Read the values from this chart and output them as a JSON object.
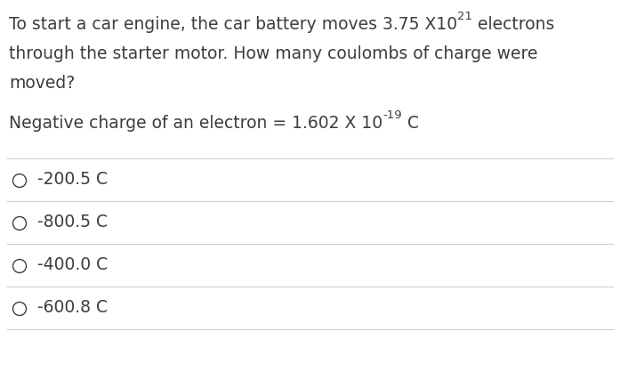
{
  "background_color": "#ffffff",
  "text_color": "#3d3d3d",
  "line_color": "#cccccc",
  "font_size": 13.5,
  "sup_font_size": 9.5,
  "q_line1_base": "To start a car engine, the car battery moves 3.75 X10",
  "q_line1_sup": "21",
  "q_line1_end": " electrons",
  "q_line2": "through the starter motor. How many coulombs of charge were",
  "q_line3": "moved?",
  "hint_base": "Negative charge of an electron = 1.602 X 10",
  "hint_sup": "-19",
  "hint_end": " C",
  "options": [
    "-200.5 C",
    "-800.5 C",
    "-400.0 C",
    "-600.8 C"
  ]
}
